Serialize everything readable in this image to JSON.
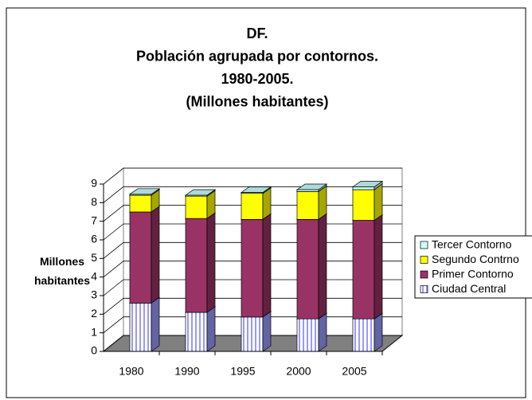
{
  "chart_data": {
    "type": "bar",
    "stacked": true,
    "title": [
      "DF.",
      "Población agrupada por contornos.",
      "1980-2005.",
      "(Millones habitantes)"
    ],
    "y_label": "Millones habitantes",
    "categories": [
      "1980",
      "1990",
      "1995",
      "2000",
      "2005"
    ],
    "series": [
      {
        "name": "Ciudad Central",
        "color": "#9999ff",
        "values": [
          2.6,
          2.1,
          1.85,
          1.75,
          1.75
        ]
      },
      {
        "name": "Primer Contorno",
        "color": "#993366",
        "values": [
          4.9,
          5.05,
          5.25,
          5.35,
          5.3
        ]
      },
      {
        "name": "Segundo Contrno",
        "color": "#ffff00",
        "values": [
          0.9,
          1.2,
          1.4,
          1.5,
          1.65
        ]
      },
      {
        "name": "Tercer Contorno",
        "color": "#ccffff",
        "values": [
          0.05,
          0.05,
          0.05,
          0.1,
          0.15
        ]
      }
    ],
    "ylim": [
      0,
      9
    ],
    "yticks": [
      0,
      1,
      2,
      3,
      4,
      5,
      6,
      7,
      8,
      9
    ],
    "grid": true,
    "legend": "right"
  }
}
